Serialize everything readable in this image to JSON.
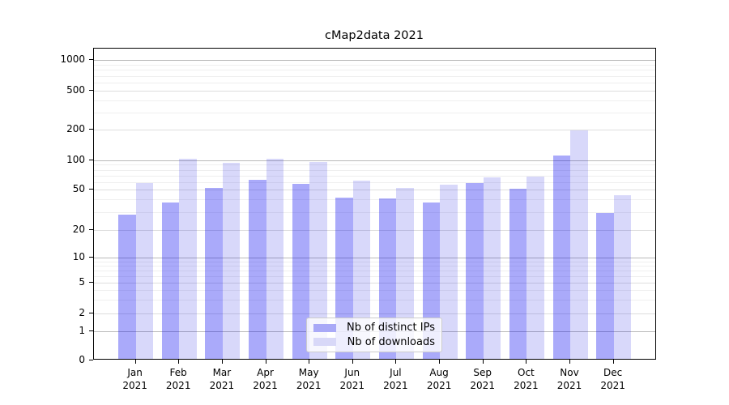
{
  "window": {
    "title": "cMap2data 2021"
  },
  "chart_data": {
    "type": "bar",
    "title": "cMap2data 2021",
    "xlabel": "",
    "ylabel": "",
    "y_scale": "symlog-like (log above 1, compressed linear below)",
    "y_ticks": [
      0,
      1,
      2,
      5,
      10,
      20,
      50,
      100,
      200,
      500,
      1000
    ],
    "y_major_power_ticks": [
      1,
      10,
      100,
      1000
    ],
    "y_minor_gridlines": [
      3,
      4,
      6,
      7,
      8,
      9,
      30,
      40,
      60,
      70,
      80,
      90,
      300,
      400,
      600,
      700,
      800,
      900
    ],
    "ylim": [
      0,
      1300
    ],
    "grid": "on-horizontal-only",
    "legend_position": "lower-center-inside",
    "categories": [
      "Jan 2021",
      "Feb 2021",
      "Mar 2021",
      "Apr 2021",
      "May 2021",
      "Jun 2021",
      "Jul 2021",
      "Aug 2021",
      "Sep 2021",
      "Oct 2021",
      "Nov 2021",
      "Dec 2021"
    ],
    "series": [
      {
        "name": "Nb of distinct IPs",
        "color": "#a9a9f7",
        "color_rgba": "rgba(5,5,240,0.34)",
        "values": [
          28,
          37,
          51,
          62,
          56,
          41,
          40,
          37,
          57,
          50,
          110,
          29
        ]
      },
      {
        "name": "Nb of downloads",
        "color": "#d8d8f8",
        "color_rgba": "rgba(10,10,225,0.16)",
        "values": [
          58,
          101,
          93,
          102,
          94,
          61,
          51,
          55,
          66,
          67,
          193,
          43
        ]
      }
    ]
  }
}
